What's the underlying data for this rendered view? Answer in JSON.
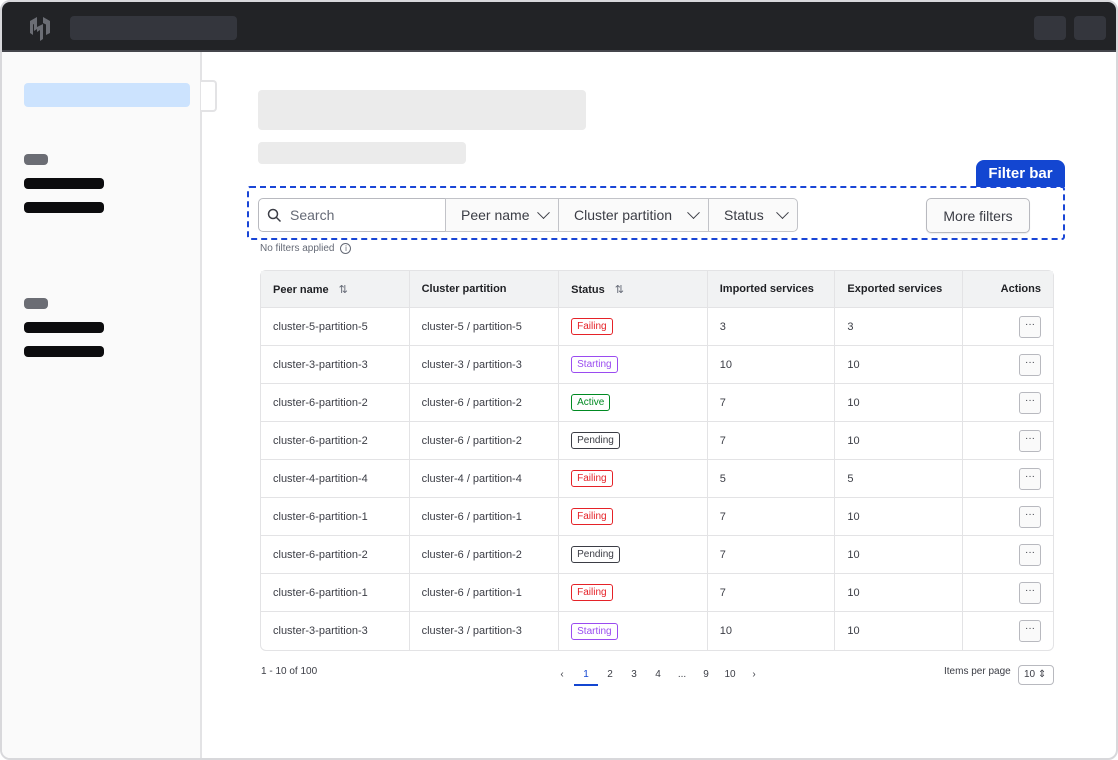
{
  "filter_bar": {
    "annotation": "Filter bar",
    "search_placeholder": "Search",
    "dropdowns": [
      "Peer name",
      "Cluster partition",
      "Status"
    ],
    "more_filters": "More filters",
    "no_filters": "No filters applied"
  },
  "table": {
    "headers": [
      "Peer name",
      "Cluster partition",
      "Status",
      "Imported services",
      "Exported services",
      "Actions"
    ],
    "rows": [
      {
        "peer": "cluster-5-partition-5",
        "partition": "cluster-5 / partition-5",
        "status": "Failing",
        "imported": "3",
        "exported": "3"
      },
      {
        "peer": "cluster-3-partition-3",
        "partition": "cluster-3 / partition-3",
        "status": "Starting",
        "imported": "10",
        "exported": "10"
      },
      {
        "peer": "cluster-6-partition-2",
        "partition": "cluster-6 / partition-2",
        "status": "Active",
        "imported": "7",
        "exported": "10"
      },
      {
        "peer": "cluster-6-partition-2",
        "partition": "cluster-6 / partition-2",
        "status": "Pending",
        "imported": "7",
        "exported": "10"
      },
      {
        "peer": "cluster-4-partition-4",
        "partition": "cluster-4 / partition-4",
        "status": "Failing",
        "imported": "5",
        "exported": "5"
      },
      {
        "peer": "cluster-6-partition-1",
        "partition": "cluster-6 / partition-1",
        "status": "Failing",
        "imported": "7",
        "exported": "10"
      },
      {
        "peer": "cluster-6-partition-2",
        "partition": "cluster-6 / partition-2",
        "status": "Pending",
        "imported": "7",
        "exported": "10"
      },
      {
        "peer": "cluster-6-partition-1",
        "partition": "cluster-6 / partition-1",
        "status": "Failing",
        "imported": "7",
        "exported": "10"
      },
      {
        "peer": "cluster-3-partition-3",
        "partition": "cluster-3 / partition-3",
        "status": "Starting",
        "imported": "10",
        "exported": "10"
      }
    ],
    "action_label": "···",
    "status_colors": {
      "Failing": "#e52228",
      "Starting": "#9a4bf0",
      "Active": "#008a22",
      "Pending": "#3b3d45"
    }
  },
  "pagination": {
    "summary": "1 - 10 of 100",
    "pages": [
      "1",
      "2",
      "3",
      "4",
      "...",
      "9",
      "10"
    ],
    "current": "1",
    "items_per_page_label": "Items per page",
    "items_per_page": "10"
  }
}
